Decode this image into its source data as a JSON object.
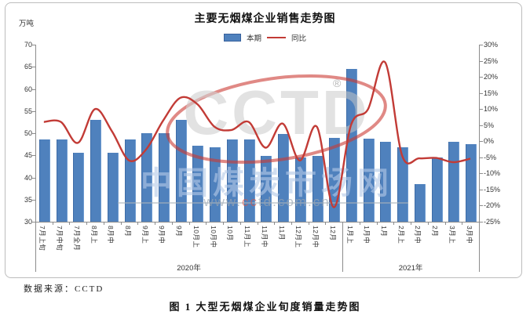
{
  "chart_data": {
    "type": "bar",
    "combo": true,
    "title": "主要无烟煤企业销售走势图",
    "unit_left": "万吨",
    "categories": [
      "7月上旬",
      "7月中旬",
      "7月全月",
      "8月上",
      "8月中",
      "8月",
      "9月上",
      "9月中",
      "9月",
      "10月上",
      "10月中",
      "10月",
      "11月上",
      "11月中",
      "11月",
      "12月上",
      "12月中",
      "12月",
      "1月上",
      "1月中",
      "1月",
      "2月上",
      "2月中",
      "2月",
      "3月上",
      "3月中"
    ],
    "year_groups": [
      {
        "label": "2020年",
        "count": 18
      },
      {
        "label": "2021年",
        "count": 8
      }
    ],
    "series": [
      {
        "name": "本期",
        "type": "bar",
        "axis": "left",
        "unit": "万吨",
        "color": "#4f81bd",
        "values": [
          48.5,
          48.5,
          45.5,
          53,
          45.5,
          48.5,
          50,
          50,
          53,
          47.2,
          46.8,
          48.5,
          48.5,
          44.8,
          49.8,
          44.5,
          44.8,
          49,
          64.5,
          48.7,
          48,
          46.8,
          38.5,
          44.6,
          48,
          47.5
        ]
      },
      {
        "name": "同比",
        "type": "line",
        "axis": "right",
        "unit": "%",
        "color": "#c23b36",
        "values": [
          6,
          6,
          -0.5,
          10,
          3,
          -6,
          -2.5,
          6.5,
          13.5,
          11.5,
          4.5,
          3.5,
          6,
          -2,
          5.5,
          -6,
          4.5,
          -20.5,
          5,
          10,
          24.5,
          -4.5,
          -5.3,
          -5.2,
          -6.5,
          -5.4
        ]
      }
    ],
    "left_axis": {
      "min": 30,
      "max": 70,
      "step": 5,
      "tick_labels": [
        "70",
        "65",
        "60",
        "55",
        "50",
        "45",
        "40",
        "35",
        "30"
      ]
    },
    "right_axis": {
      "min": -25,
      "max": 30,
      "step": 5,
      "tick_labels": [
        "30%",
        "25%",
        "20%",
        "15%",
        "10%",
        "5%",
        "0%",
        "-5%",
        "-10%",
        "-15%",
        "-20%",
        "-25%"
      ]
    },
    "grid": false,
    "legend_position": "top-center"
  },
  "watermark": {
    "brand": "CCTD",
    "registered": "®",
    "site_name": "中国煤炭市场网",
    "url_prefix": "www.",
    "url_highlight": "cc",
    "url_suffix": "td.com.cn",
    "swoosh_color": "#cc3a33"
  },
  "footer": {
    "source_note": "数据来源：CCTD",
    "caption": "图 1  大型无烟煤企业旬度销量走势图"
  }
}
